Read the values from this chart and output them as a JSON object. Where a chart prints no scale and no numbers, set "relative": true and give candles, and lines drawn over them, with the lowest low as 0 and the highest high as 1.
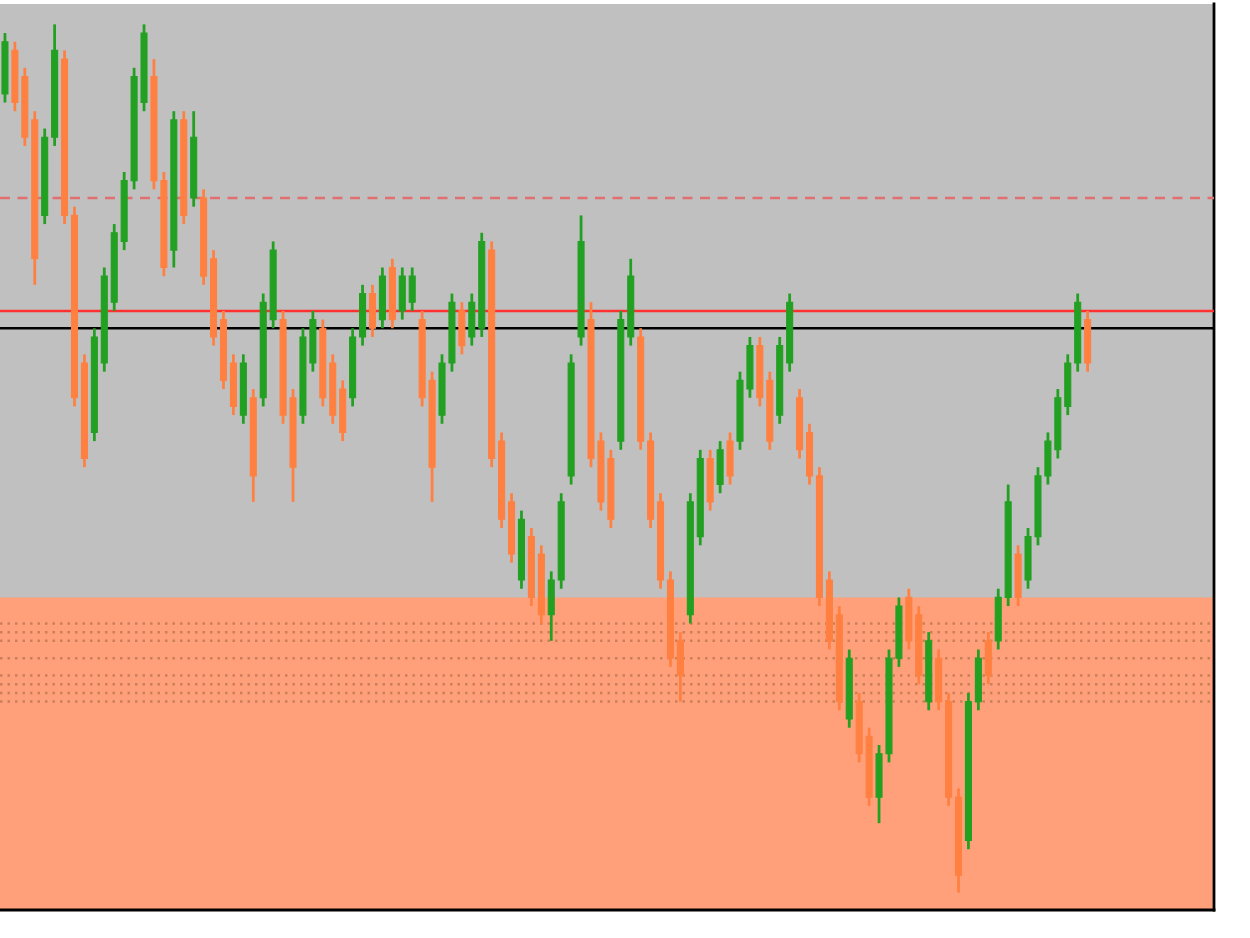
{
  "chart_data": {
    "type": "candlestick",
    "relative": true,
    "categories": [
      null,
      null,
      null,
      null,
      null,
      null,
      null,
      null,
      null,
      null,
      null,
      null,
      null,
      null,
      null,
      null,
      null,
      null,
      null,
      null,
      null,
      null,
      null,
      null,
      null,
      null,
      null,
      null,
      null,
      null,
      null,
      null,
      null,
      null,
      null,
      null,
      null,
      null,
      null,
      null,
      null,
      null,
      null,
      null,
      null,
      null,
      null,
      null,
      null,
      null,
      null,
      null,
      null,
      null,
      null,
      null,
      null,
      null,
      null,
      null,
      null,
      null,
      null,
      null,
      null,
      null,
      null,
      null,
      null,
      null,
      null,
      null,
      null,
      null,
      null,
      null,
      null,
      null,
      null,
      null,
      null,
      null,
      null,
      null,
      null,
      null,
      null,
      null,
      null,
      null,
      null,
      null,
      null,
      null,
      null,
      null,
      null,
      null,
      null,
      null,
      null,
      null,
      null,
      null,
      null,
      null,
      null,
      null,
      null,
      null
    ],
    "ohlc": [
      [
        0.92,
        0.99,
        0.91,
        0.98
      ],
      [
        0.97,
        0.98,
        0.9,
        0.91
      ],
      [
        0.94,
        0.95,
        0.86,
        0.87
      ],
      [
        0.89,
        0.9,
        0.7,
        0.73
      ],
      [
        0.78,
        0.88,
        0.77,
        0.87
      ],
      [
        0.87,
        1.0,
        0.86,
        0.97
      ],
      [
        0.96,
        0.97,
        0.77,
        0.78
      ],
      [
        0.78,
        0.79,
        0.56,
        0.57
      ],
      [
        0.61,
        0.62,
        0.49,
        0.5
      ],
      [
        0.53,
        0.65,
        0.52,
        0.64
      ],
      [
        0.61,
        0.72,
        0.6,
        0.71
      ],
      [
        0.68,
        0.77,
        0.67,
        0.76
      ],
      [
        0.75,
        0.83,
        0.74,
        0.82
      ],
      [
        0.82,
        0.95,
        0.81,
        0.94
      ],
      [
        0.91,
        1.0,
        0.9,
        0.99
      ],
      [
        0.94,
        0.96,
        0.81,
        0.82
      ],
      [
        0.82,
        0.83,
        0.71,
        0.72
      ],
      [
        0.74,
        0.9,
        0.72,
        0.89
      ],
      [
        0.89,
        0.9,
        0.77,
        0.78
      ],
      [
        0.8,
        0.9,
        0.79,
        0.87
      ],
      [
        0.8,
        0.81,
        0.7,
        0.71
      ],
      [
        0.73,
        0.74,
        0.63,
        0.64
      ],
      [
        0.66,
        0.67,
        0.58,
        0.59
      ],
      [
        0.61,
        0.62,
        0.55,
        0.56
      ],
      [
        0.55,
        0.62,
        0.54,
        0.61
      ],
      [
        0.57,
        0.58,
        0.45,
        0.48
      ],
      [
        0.57,
        0.69,
        0.56,
        0.68
      ],
      [
        0.66,
        0.75,
        0.65,
        0.74
      ],
      [
        0.66,
        0.67,
        0.54,
        0.55
      ],
      [
        0.57,
        0.58,
        0.45,
        0.49
      ],
      [
        0.55,
        0.65,
        0.54,
        0.64
      ],
      [
        0.61,
        0.67,
        0.6,
        0.66
      ],
      [
        0.65,
        0.66,
        0.56,
        0.57
      ],
      [
        0.61,
        0.62,
        0.54,
        0.55
      ],
      [
        0.58,
        0.59,
        0.52,
        0.53
      ],
      [
        0.57,
        0.65,
        0.56,
        0.64
      ],
      [
        0.64,
        0.7,
        0.63,
        0.69
      ],
      [
        0.69,
        0.7,
        0.64,
        0.65
      ],
      [
        0.66,
        0.72,
        0.65,
        0.71
      ],
      [
        0.72,
        0.73,
        0.65,
        0.66
      ],
      [
        0.67,
        0.72,
        0.66,
        0.71
      ],
      [
        0.68,
        0.72,
        0.67,
        0.71
      ],
      [
        0.66,
        0.67,
        0.56,
        0.57
      ],
      [
        0.59,
        0.6,
        0.45,
        0.49
      ],
      [
        0.55,
        0.62,
        0.54,
        0.61
      ],
      [
        0.61,
        0.69,
        0.6,
        0.68
      ],
      [
        0.67,
        0.68,
        0.62,
        0.63
      ],
      [
        0.64,
        0.69,
        0.63,
        0.68
      ],
      [
        0.65,
        0.76,
        0.64,
        0.75
      ],
      [
        0.74,
        0.75,
        0.49,
        0.5
      ],
      [
        0.52,
        0.53,
        0.42,
        0.43
      ],
      [
        0.45,
        0.46,
        0.38,
        0.39
      ],
      [
        0.36,
        0.44,
        0.35,
        0.43
      ],
      [
        0.41,
        0.42,
        0.33,
        0.34
      ],
      [
        0.39,
        0.4,
        0.31,
        0.32
      ],
      [
        0.32,
        0.37,
        0.29,
        0.36
      ],
      [
        0.36,
        0.46,
        0.35,
        0.45
      ],
      [
        0.48,
        0.62,
        0.47,
        0.61
      ],
      [
        0.64,
        0.78,
        0.63,
        0.75
      ],
      [
        0.66,
        0.68,
        0.49,
        0.5
      ],
      [
        0.52,
        0.53,
        0.44,
        0.45
      ],
      [
        0.5,
        0.51,
        0.42,
        0.43
      ],
      [
        0.52,
        0.67,
        0.51,
        0.66
      ],
      [
        0.64,
        0.73,
        0.63,
        0.71
      ],
      [
        0.64,
        0.65,
        0.51,
        0.52
      ],
      [
        0.52,
        0.53,
        0.42,
        0.43
      ],
      [
        0.45,
        0.46,
        0.35,
        0.36
      ],
      [
        0.36,
        0.37,
        0.26,
        0.27
      ],
      [
        0.29,
        0.3,
        0.22,
        0.25
      ],
      [
        0.32,
        0.46,
        0.31,
        0.45
      ],
      [
        0.41,
        0.51,
        0.4,
        0.5
      ],
      [
        0.5,
        0.51,
        0.44,
        0.45
      ],
      [
        0.47,
        0.52,
        0.46,
        0.51
      ],
      [
        0.52,
        0.53,
        0.47,
        0.48
      ],
      [
        0.52,
        0.6,
        0.51,
        0.59
      ],
      [
        0.58,
        0.64,
        0.57,
        0.63
      ],
      [
        0.63,
        0.64,
        0.56,
        0.57
      ],
      [
        0.59,
        0.6,
        0.51,
        0.52
      ],
      [
        0.55,
        0.64,
        0.54,
        0.63
      ],
      [
        0.61,
        0.69,
        0.6,
        0.68
      ],
      [
        0.57,
        0.58,
        0.5,
        0.51
      ],
      [
        0.53,
        0.54,
        0.47,
        0.48
      ],
      [
        0.48,
        0.49,
        0.33,
        0.34
      ],
      [
        0.36,
        0.37,
        0.28,
        0.29
      ],
      [
        0.32,
        0.33,
        0.21,
        0.22
      ],
      [
        0.2,
        0.28,
        0.19,
        0.27
      ],
      [
        0.22,
        0.23,
        0.15,
        0.16
      ],
      [
        0.18,
        0.19,
        0.1,
        0.11
      ],
      [
        0.11,
        0.17,
        0.08,
        0.16
      ],
      [
        0.16,
        0.28,
        0.15,
        0.27
      ],
      [
        0.27,
        0.34,
        0.26,
        0.33
      ],
      [
        0.34,
        0.35,
        0.28,
        0.29
      ],
      [
        0.32,
        0.33,
        0.24,
        0.25
      ],
      [
        0.22,
        0.3,
        0.21,
        0.29
      ],
      [
        0.27,
        0.28,
        0.21,
        0.22
      ],
      [
        0.22,
        0.23,
        0.1,
        0.11
      ],
      [
        0.11,
        0.12,
        0.0,
        0.02
      ],
      [
        0.06,
        0.23,
        0.05,
        0.22
      ],
      [
        0.22,
        0.28,
        0.21,
        0.27
      ],
      [
        0.29,
        0.3,
        0.24,
        0.25
      ],
      [
        0.29,
        0.35,
        0.28,
        0.34
      ],
      [
        0.34,
        0.47,
        0.33,
        0.45
      ],
      [
        0.39,
        0.4,
        0.33,
        0.34
      ],
      [
        0.36,
        0.42,
        0.35,
        0.41
      ],
      [
        0.41,
        0.49,
        0.4,
        0.48
      ],
      [
        0.48,
        0.53,
        0.47,
        0.52
      ],
      [
        0.51,
        0.58,
        0.5,
        0.57
      ],
      [
        0.56,
        0.62,
        0.55,
        0.61
      ],
      [
        0.61,
        0.69,
        0.6,
        0.68
      ],
      [
        0.66,
        0.67,
        0.6,
        0.61
      ]
    ],
    "colors": [
      "#22a022",
      "#ff8040",
      "#ff8040",
      "#ff8040",
      "#22a022",
      "#22a022",
      "#ff8040",
      "#ff8040",
      "#ff8040",
      "#22a022",
      "#22a022",
      "#22a022",
      "#22a022",
      "#22a022",
      "#22a022",
      "#ff8040",
      "#ff8040",
      "#22a022",
      "#ff8040",
      "#22a022",
      "#ff8040",
      "#ff8040",
      "#ff8040",
      "#ff8040",
      "#22a022",
      "#ff8040",
      "#22a022",
      "#22a022",
      "#ff8040",
      "#ff8040",
      "#22a022",
      "#22a022",
      "#ff8040",
      "#ff8040",
      "#ff8040",
      "#22a022",
      "#22a022",
      "#ff8040",
      "#22a022",
      "#ff8040",
      "#22a022",
      "#22a022",
      "#ff8040",
      "#ff8040",
      "#22a022",
      "#22a022",
      "#ff8040",
      "#22a022",
      "#22a022",
      "#ff8040",
      "#ff8040",
      "#ff8040",
      "#22a022",
      "#ff8040",
      "#ff8040",
      "#22a022",
      "#22a022",
      "#22a022",
      "#22a022",
      "#ff8040",
      "#ff8040",
      "#ff8040",
      "#22a022",
      "#22a022",
      "#ff8040",
      "#ff8040",
      "#ff8040",
      "#ff8040",
      "#ff8040",
      "#22a022",
      "#22a022",
      "#ff8040",
      "#22a022",
      "#ff8040",
      "#22a022",
      "#22a022",
      "#ff8040",
      "#ff8040",
      "#22a022",
      "#22a022",
      "#ff8040",
      "#ff8040",
      "#ff8040",
      "#ff8040",
      "#ff8040",
      "#22a022",
      "#ff8040",
      "#ff8040",
      "#22a022",
      "#22a022",
      "#22a022",
      "#ff8040",
      "#ff8040",
      "#22a022",
      "#ff8040",
      "#ff8040",
      "#ff8040",
      "#22a022",
      "#22a022",
      "#ff8040",
      "#22a022",
      "#22a022",
      "#ff8040",
      "#22a022",
      "#22a022",
      "#22a022",
      "#22a022",
      "#22a022",
      "#22a022",
      "#ff8040"
    ],
    "ref_lines": [
      {
        "axis": "y",
        "value": 0.8,
        "color": "#e07070",
        "line_style": "dashed"
      },
      {
        "axis": "y",
        "value": 0.67,
        "color": "#ff3030",
        "line_style": "solid"
      },
      {
        "axis": "y",
        "value": 0.65,
        "color": "#000000",
        "line_style": "solid"
      },
      {
        "axis": "y",
        "value": 0.31,
        "color": "#c8805a",
        "line_style": "dotted"
      },
      {
        "axis": "y",
        "value": 0.3,
        "color": "#c8805a",
        "line_style": "dotted"
      },
      {
        "axis": "y",
        "value": 0.29,
        "color": "#c8805a",
        "line_style": "dotted"
      },
      {
        "axis": "y",
        "value": 0.27,
        "color": "#c8805a",
        "line_style": "dotted"
      },
      {
        "axis": "y",
        "value": 0.25,
        "color": "#c8805a",
        "line_style": "dotted"
      },
      {
        "axis": "y",
        "value": 0.24,
        "color": "#c8805a",
        "line_style": "dotted"
      },
      {
        "axis": "y",
        "value": 0.23,
        "color": "#c8805a",
        "line_style": "dotted"
      },
      {
        "axis": "y",
        "value": 0.22,
        "color": "#c8805a",
        "line_style": "dotted"
      }
    ],
    "bands": [
      {
        "axis": "y",
        "from": -0.02,
        "to": 0.34,
        "color": "#ffa07a"
      }
    ]
  }
}
